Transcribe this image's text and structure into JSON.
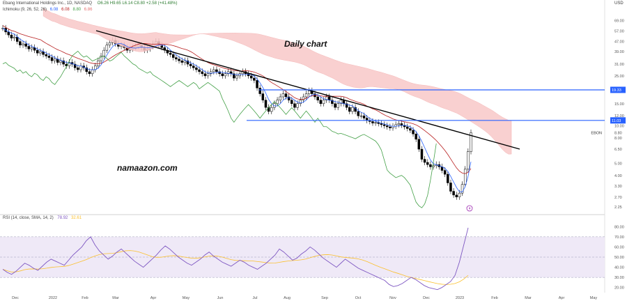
{
  "header": {
    "line1_symbol": "Ebang International Holdings Inc., 1D, NASDAQ",
    "line1_ohlc": "O6.26  H9.65  L6.14  C8.80  +2.58 (+41.48%)",
    "line2_ichimoku_label": "Ichimoku (9, 26, 52, 26)",
    "line2_values": [
      "6.08",
      "6.08",
      "8.80",
      "6.86"
    ]
  },
  "annotations": {
    "chart_title": "Daily chart",
    "watermark": "namaazon.com",
    "ticker_tag": "EBON"
  },
  "price_axis": {
    "unit": "USD",
    "ticks": [
      "69.00",
      "57.00",
      "47.00",
      "39.00",
      "31.00",
      "25.00",
      "19.00",
      "15.00",
      "12.00",
      "10.00",
      "8.80",
      "8.00",
      "6.50",
      "5.00",
      "4.00",
      "3.30",
      "2.70",
      "2.25",
      "1.87"
    ]
  },
  "level_tags": [
    "19.33",
    "11.03"
  ],
  "rsi": {
    "label": "RSI (14, close, SMA, 14, 2)",
    "values_text": [
      "78.92",
      "32.61"
    ],
    "ticks": [
      "80.00",
      "70.00",
      "60.00",
      "50.00",
      "40.00",
      "30.00",
      "20.00"
    ]
  },
  "x_axis": {
    "labels": [
      "Dec",
      "2022",
      "Feb",
      "Mar",
      "Apr",
      "May",
      "Jun",
      "Jul",
      "Aug",
      "Sep",
      "Oct",
      "Nov",
      "Dec",
      "2023",
      "Feb",
      "Mar",
      "Apr",
      "May"
    ]
  },
  "colors": {
    "candle": "#000000",
    "tenkan": "#2962ff",
    "kijun": "#b71c1c",
    "chikou": "#43a047",
    "cloud_bearish": "#f8c8c8",
    "cloud_bullish": "#c8e6c9",
    "trendline": "#000000",
    "levels": "#2962ff",
    "rsi_line": "#7e57c2",
    "rsi_ma": "#fbc02d",
    "rsi_band": "#ede7f6",
    "lightning": "#9c27b0"
  },
  "chart_data": [
    {
      "type": "candlestick",
      "xlabel": "",
      "ylabel": "",
      "log_scale": true,
      "ylim": [
        1.87,
        69.0
      ],
      "closes": [
        60,
        56,
        53,
        50,
        51,
        47,
        44,
        45,
        43,
        41,
        42,
        40,
        38,
        39,
        37,
        36,
        35,
        33,
        34,
        32,
        33,
        31,
        30,
        32,
        31,
        29,
        28,
        30,
        29,
        27,
        26,
        28,
        30,
        33,
        36,
        40,
        44,
        46,
        48,
        45,
        43,
        44,
        42,
        40,
        41,
        42,
        43,
        44,
        42,
        40,
        41,
        43,
        45,
        47,
        44,
        42,
        40,
        38,
        37,
        35,
        34,
        33,
        32,
        33,
        31,
        30,
        29,
        28,
        27,
        26,
        25,
        26,
        27,
        28,
        27,
        26,
        25,
        26,
        27,
        26,
        24,
        25,
        26,
        27,
        26,
        25,
        24,
        23,
        20,
        18,
        16,
        14,
        13,
        14,
        15,
        16,
        17,
        18,
        17,
        16,
        15,
        14,
        15,
        16,
        17,
        18,
        19,
        18,
        17,
        16,
        15,
        16,
        17,
        16,
        15,
        14,
        15,
        16,
        15,
        14,
        13,
        14,
        13,
        12,
        12,
        11.5,
        11,
        10.8,
        10.5,
        10.6,
        10.4,
        10.2,
        10,
        9.8,
        9.6,
        9.9,
        10.2,
        10.4,
        10.1,
        9.8,
        9.5,
        9.2,
        8.6,
        7.8,
        6.5,
        5.4,
        5.1,
        4.9,
        4.7,
        4.8,
        4.9,
        4.7,
        4.4,
        4.1,
        3.5,
        3.0,
        2.8,
        2.7,
        2.9,
        3.4,
        4.5,
        6.22,
        8.8
      ],
      "trendline": {
        "from": [
          "Feb 2022",
          57.0
        ],
        "to": [
          "Feb 2023",
          6.0
        ]
      },
      "horizontal_levels": [
        19.33,
        11.03
      ],
      "last_close": 8.8
    },
    {
      "type": "line",
      "name": "RSI (14, close, SMA, 14, 2)",
      "ylim": [
        15,
        85
      ],
      "band": [
        30,
        70
      ],
      "values": [
        38,
        35,
        33,
        36,
        40,
        44,
        42,
        39,
        37,
        41,
        45,
        48,
        46,
        44,
        42,
        47,
        52,
        56,
        60,
        66,
        70,
        62,
        56,
        52,
        48,
        51,
        55,
        58,
        54,
        50,
        46,
        43,
        40,
        44,
        48,
        52,
        57,
        61,
        58,
        54,
        50,
        47,
        44,
        42,
        45,
        48,
        52,
        55,
        51,
        48,
        45,
        43,
        41,
        44,
        47,
        45,
        42,
        40,
        38,
        41,
        44,
        48,
        52,
        58,
        55,
        51,
        47,
        49,
        53,
        56,
        60,
        57,
        53,
        49,
        46,
        43,
        40,
        44,
        48,
        45,
        42,
        39,
        37,
        35,
        33,
        31,
        29,
        27,
        23,
        21,
        22,
        24,
        27,
        30,
        28,
        25,
        22,
        20,
        19,
        18,
        20,
        23,
        26,
        32,
        45,
        62,
        78.92
      ]
    }
  ]
}
